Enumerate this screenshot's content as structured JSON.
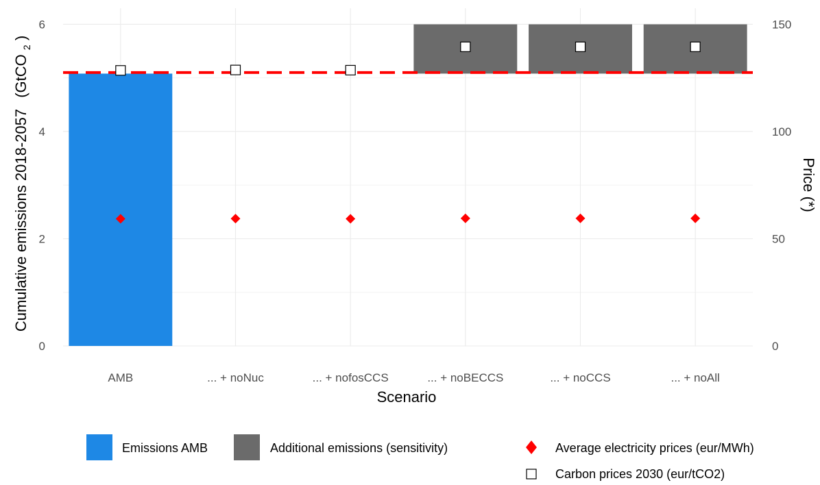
{
  "chart_data": {
    "type": "bar",
    "categories": [
      "AMB",
      "... + noNuc",
      "... + nofosCCS",
      "... + noBECCS",
      "... + noCCS",
      "... + noAll"
    ],
    "xlabel": "Scenario",
    "ylabel_left": "Cumulative emissions 2018-2057",
    "ylabel_left_unit_prefix": "(GtCO",
    "ylabel_left_unit_sub": "2",
    "ylabel_left_unit_suffix": ")",
    "ylabel_right": "Price (*)",
    "ylim_left": [
      0,
      6.3
    ],
    "ylim_right": [
      0,
      157.5
    ],
    "yticks_left": [
      0,
      2,
      4,
      6
    ],
    "yticks_right": [
      0,
      50,
      100,
      150
    ],
    "grid": true,
    "legend_position": "bottom",
    "series": [
      {
        "name": "Emissions AMB",
        "kind": "bar",
        "color": "#1e88e5",
        "base": [
          0,
          null,
          null,
          null,
          null,
          null
        ],
        "values": [
          5.08,
          null,
          null,
          null,
          null,
          null
        ]
      },
      {
        "name": "Additional emissions (sensitivity)",
        "kind": "bar",
        "color": "#6b6b6b",
        "base": [
          null,
          null,
          null,
          5.08,
          5.08,
          5.08
        ],
        "values": [
          null,
          null,
          null,
          6.0,
          6.0,
          6.0
        ]
      },
      {
        "name": "Average electricity prices (eur/MWh)",
        "kind": "point",
        "marker": "diamond",
        "axis": "right",
        "color": "#ff0000",
        "values": [
          59.3,
          59.4,
          59.3,
          59.5,
          59.5,
          59.5
        ]
      },
      {
        "name": "Carbon prices 2030 (eur/tCO2)",
        "kind": "point",
        "marker": "square",
        "axis": "right",
        "color": "#000000",
        "values": [
          128.5,
          128.7,
          128.6,
          139.5,
          139.5,
          139.5
        ]
      }
    ],
    "reference_line": {
      "y": 5.1,
      "color": "#ff0000",
      "style": "dashed"
    }
  }
}
